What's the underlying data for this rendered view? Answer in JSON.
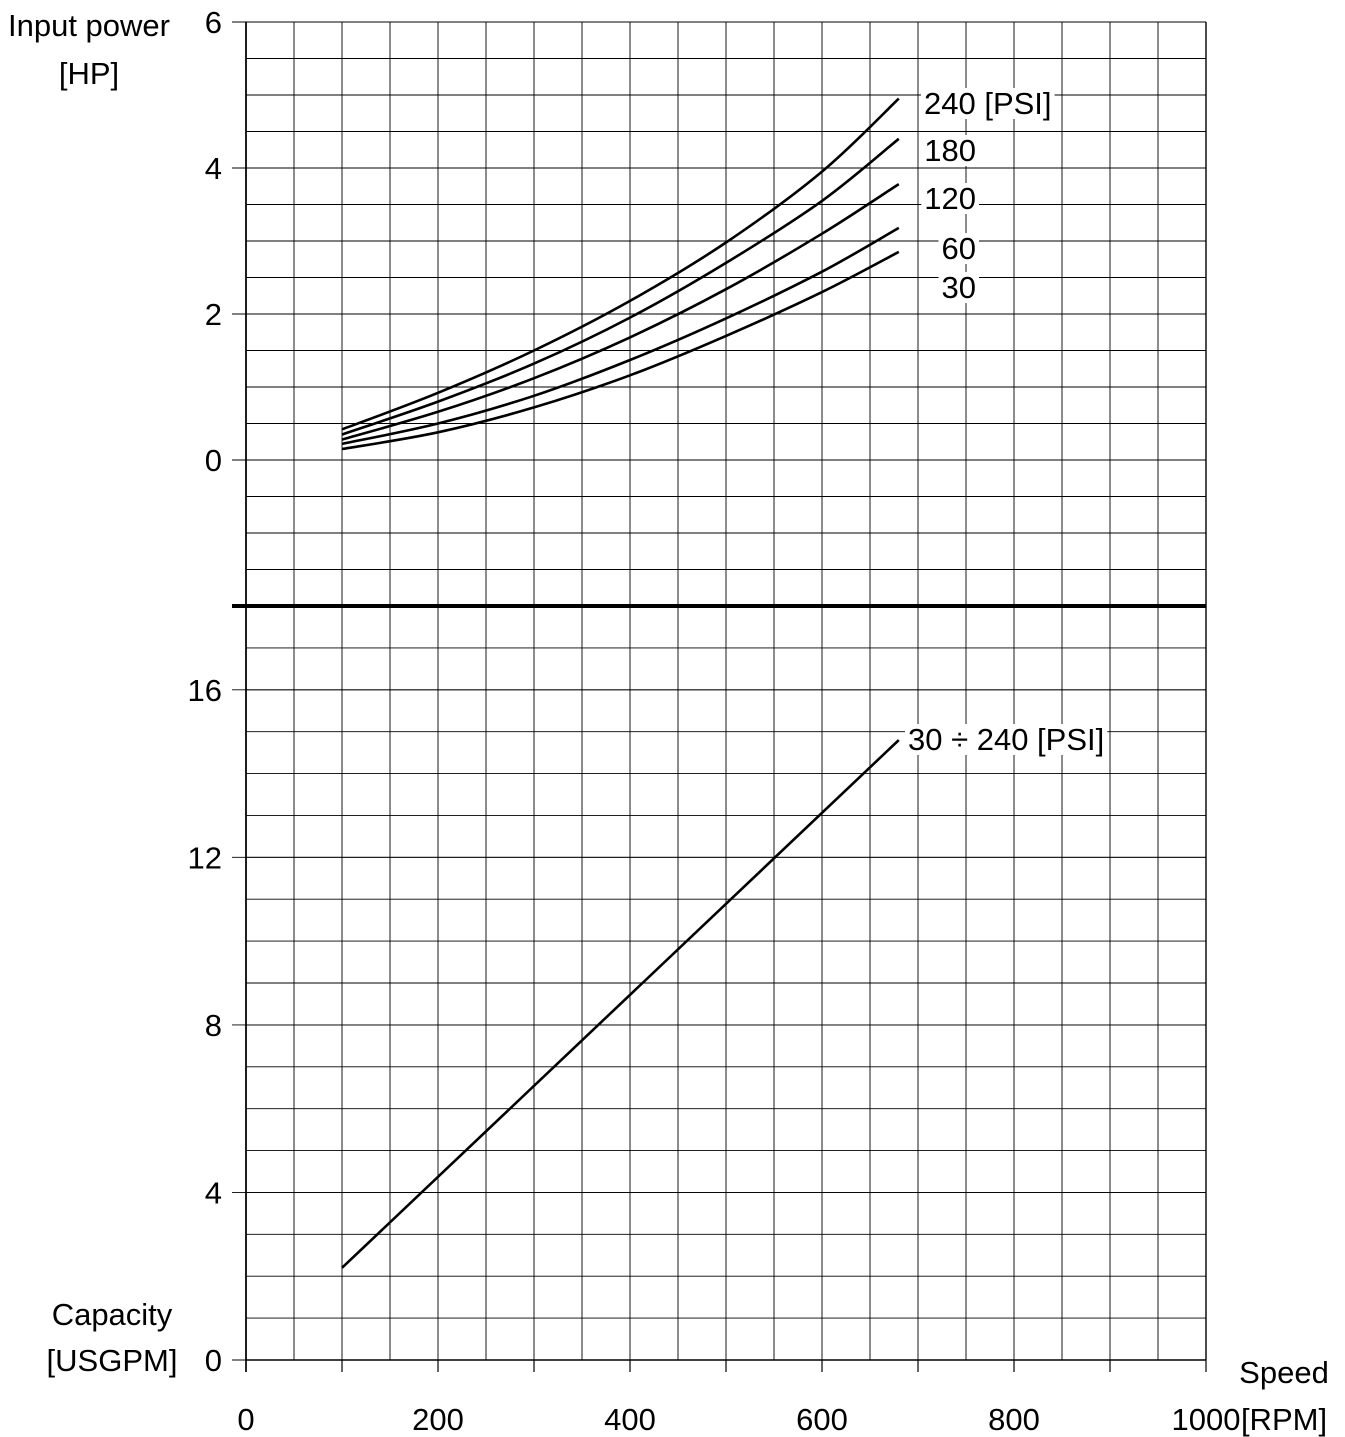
{
  "chart_data": [
    {
      "type": "line",
      "panel": "top",
      "ylabel": [
        "Input power",
        "[HP]"
      ],
      "xlim": [
        0,
        1000
      ],
      "ylim": [
        -2,
        6
      ],
      "y_ticks": [
        0,
        2,
        4,
        6
      ],
      "series": [
        {
          "name": "240 [PSI]",
          "x": [
            100,
            200,
            300,
            400,
            500,
            600,
            680
          ],
          "y": [
            0.42,
            0.92,
            1.5,
            2.18,
            2.98,
            3.95,
            4.95
          ]
        },
        {
          "name": "180",
          "x": [
            100,
            200,
            300,
            400,
            500,
            600,
            680
          ],
          "y": [
            0.35,
            0.8,
            1.32,
            1.95,
            2.7,
            3.55,
            4.4
          ]
        },
        {
          "name": "120",
          "x": [
            100,
            200,
            300,
            400,
            500,
            600,
            680
          ],
          "y": [
            0.28,
            0.66,
            1.12,
            1.68,
            2.34,
            3.1,
            3.78
          ]
        },
        {
          "name": "60",
          "x": [
            100,
            200,
            300,
            400,
            500,
            600,
            680
          ],
          "y": [
            0.22,
            0.5,
            0.88,
            1.37,
            1.94,
            2.58,
            3.18
          ]
        },
        {
          "name": "30",
          "x": [
            100,
            200,
            300,
            400,
            500,
            600,
            680
          ],
          "y": [
            0.15,
            0.38,
            0.72,
            1.16,
            1.7,
            2.3,
            2.85
          ]
        }
      ],
      "series_label_text": [
        "240 [PSI]",
        "180",
        "120",
        "60",
        "30"
      ],
      "grid": true
    },
    {
      "type": "line",
      "panel": "bottom",
      "ylabel": [
        "Capacity",
        "[USGPM]"
      ],
      "xlabel": [
        "Speed",
        "[RPM]"
      ],
      "xlim": [
        0,
        1000
      ],
      "ylim": [
        0,
        18
      ],
      "y_ticks": [
        0,
        4,
        8,
        12,
        16
      ],
      "x_ticks": [
        0,
        200,
        400,
        600,
        800,
        1000
      ],
      "series": [
        {
          "name": "30 ÷ 240 [PSI]",
          "x": [
            100,
            680
          ],
          "y": [
            2.2,
            14.8
          ]
        }
      ],
      "grid": true
    }
  ]
}
